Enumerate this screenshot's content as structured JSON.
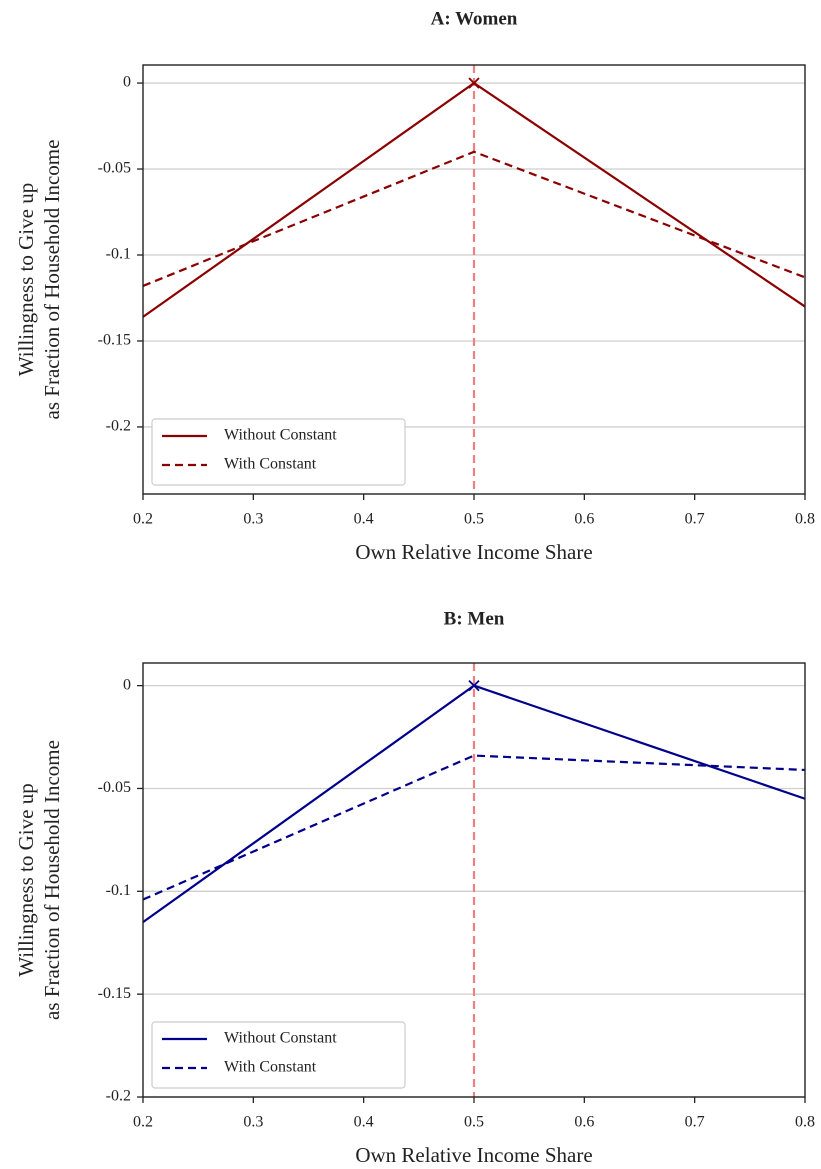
{
  "chart_data": [
    {
      "type": "line",
      "title": "A: Women",
      "xlabel": "Own Relative Income Share",
      "ylabel": [
        "Willingness to Give up",
        "as Fraction of Household Income"
      ],
      "x": [
        0.2,
        0.5,
        0.8
      ],
      "series": [
        {
          "name": "Without Constant",
          "color": "#8b0000",
          "dash": "solid",
          "marker": "x",
          "values": [
            -0.136,
            0,
            -0.13
          ]
        },
        {
          "name": "With Constant",
          "color": "#8b0000",
          "dash": "dashed",
          "values": [
            -0.118,
            -0.04,
            -0.113
          ]
        }
      ],
      "vline": {
        "x": 0.5,
        "color": "#f08080",
        "dash": "dashed"
      },
      "xlim": [
        0.2,
        0.8
      ],
      "xticks": [
        0.2,
        0.3,
        0.4,
        0.5,
        0.6,
        0.7,
        0.8
      ],
      "ylim": [
        -0.239,
        0.0105
      ],
      "yticks": [
        0,
        -0.05,
        -0.1,
        -0.15,
        -0.2
      ],
      "grid": true,
      "legend": "lower left"
    },
    {
      "type": "line",
      "title": "B: Men",
      "xlabel": "Own Relative Income Share",
      "ylabel": [
        "Willingness to Give up",
        "as Fraction of Household Income"
      ],
      "x": [
        0.2,
        0.5,
        0.8
      ],
      "series": [
        {
          "name": "Without Constant",
          "color": "#00008b",
          "dash": "solid",
          "marker": "x",
          "values": [
            -0.115,
            0,
            -0.055
          ]
        },
        {
          "name": "With Constant",
          "color": "#00008b",
          "dash": "dashed",
          "values": [
            -0.104,
            -0.034,
            -0.041
          ]
        }
      ],
      "vline": {
        "x": 0.5,
        "color": "#f08080",
        "dash": "dashed"
      },
      "xlim": [
        0.2,
        0.8
      ],
      "xticks": [
        0.2,
        0.3,
        0.4,
        0.5,
        0.6,
        0.7,
        0.8
      ],
      "ylim": [
        -0.2,
        0.011
      ],
      "yticks": [
        0,
        -0.05,
        -0.1,
        -0.15,
        -0.2
      ],
      "grid": true,
      "legend": "lower left"
    }
  ]
}
